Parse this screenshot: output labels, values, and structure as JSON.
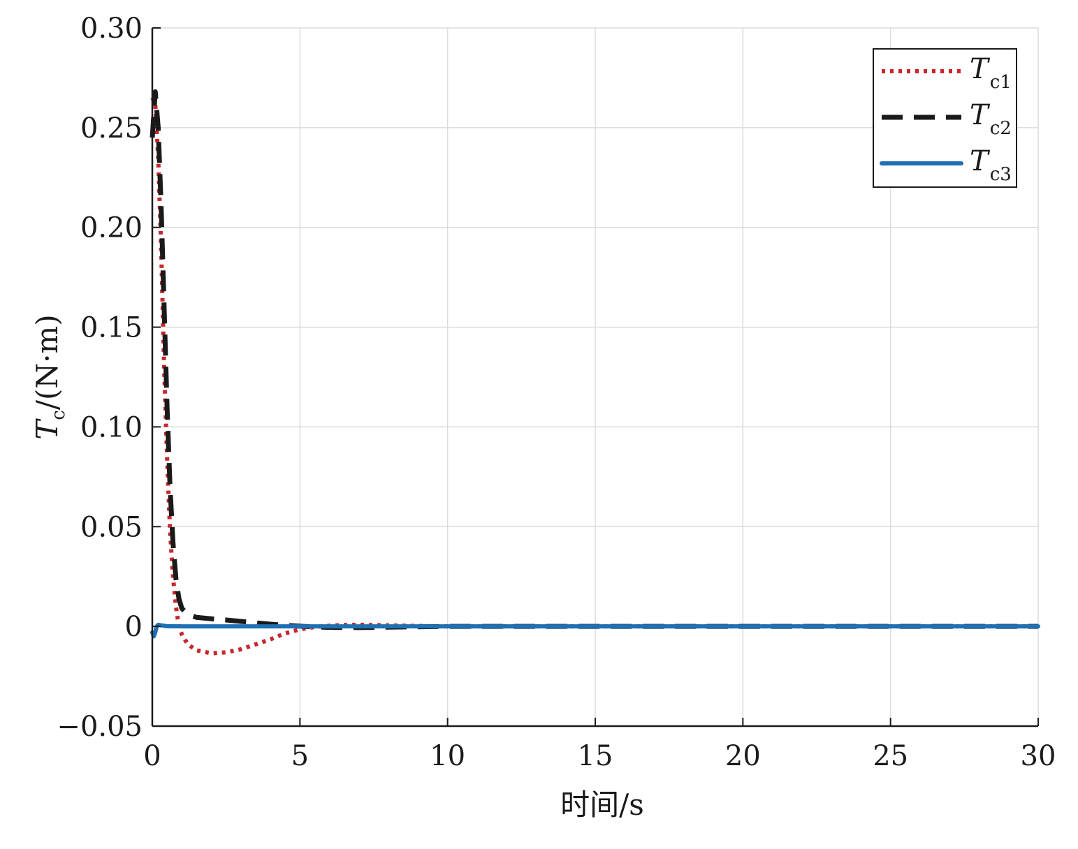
{
  "chart_data": {
    "type": "line",
    "title": "",
    "xlabel": "时间/s",
    "ylabel": {
      "symbol": "T",
      "subscript": "c",
      "unit": "/(N·m)"
    },
    "xlim": [
      0,
      30
    ],
    "ylim": [
      -0.05,
      0.3
    ],
    "xticks": [
      0,
      5,
      10,
      15,
      20,
      25,
      30
    ],
    "xtick_labels": [
      "0",
      "5",
      "10",
      "15",
      "20",
      "25",
      "30"
    ],
    "yticks": [
      -0.05,
      0,
      0.05,
      0.1,
      0.15,
      0.2,
      0.25,
      0.3
    ],
    "ytick_labels": [
      "−0.05",
      "0",
      "0.05",
      "0.10",
      "0.15",
      "0.20",
      "0.25",
      "0.30"
    ],
    "grid": true,
    "legend_position": "top-right",
    "series": [
      {
        "name": "T",
        "subscript": "c1",
        "color": "#c8262c",
        "style": "dotted",
        "x": [
          0,
          0.1,
          0.2,
          0.3,
          0.4,
          0.5,
          0.6,
          0.7,
          0.8,
          0.9,
          1.0,
          1.2,
          1.5,
          2.0,
          2.5,
          3.0,
          3.5,
          4.0,
          4.5,
          5.0,
          5.5,
          6.0,
          6.5,
          7.0,
          8.0,
          9.0,
          10.0,
          12.0,
          15.0,
          20.0,
          25.0,
          30.0
        ],
        "y": [
          0.265,
          0.262,
          0.235,
          0.19,
          0.13,
          0.085,
          0.048,
          0.025,
          0.01,
          0.0,
          -0.004,
          -0.009,
          -0.012,
          -0.0135,
          -0.013,
          -0.0115,
          -0.009,
          -0.0065,
          -0.0035,
          -0.0015,
          -0.0003,
          0.0003,
          0.0007,
          0.0008,
          0.0005,
          0.0002,
          0.0,
          0.0,
          0.0,
          0.0,
          0.0,
          0.0
        ]
      },
      {
        "name": "T",
        "subscript": "c2",
        "color": "#1a1a1a",
        "style": "dashed",
        "x": [
          0,
          0.1,
          0.2,
          0.3,
          0.4,
          0.5,
          0.6,
          0.7,
          0.8,
          0.9,
          1.0,
          1.2,
          1.5,
          2.0,
          2.5,
          3.0,
          3.5,
          4.0,
          4.5,
          5.0,
          5.5,
          6.0,
          7.0,
          8.0,
          9.0,
          10.0,
          12.0,
          15.0,
          20.0,
          25.0,
          30.0
        ],
        "y": [
          0.245,
          0.268,
          0.25,
          0.21,
          0.16,
          0.11,
          0.07,
          0.042,
          0.024,
          0.014,
          0.009,
          0.006,
          0.0045,
          0.0038,
          0.0032,
          0.0025,
          0.0018,
          0.0011,
          0.0005,
          0.0001,
          -0.0003,
          -0.0005,
          -0.0006,
          -0.0004,
          -0.0002,
          0.0,
          0.0,
          0.0,
          0.0,
          0.0,
          0.0
        ]
      },
      {
        "name": "T",
        "subscript": "c3",
        "color": "#1f6fb4",
        "style": "solid",
        "x": [
          0,
          0.05,
          0.1,
          0.15,
          0.2,
          0.3,
          0.5,
          1.0,
          2.0,
          5.0,
          10.0,
          15.0,
          20.0,
          25.0,
          30.0
        ],
        "y": [
          -0.003,
          -0.005,
          -0.003,
          0.0,
          0.0008,
          0.0005,
          0.0001,
          0.0,
          0.0,
          0.0,
          0.0,
          0.0,
          0.0,
          0.0,
          0.0
        ]
      }
    ]
  }
}
